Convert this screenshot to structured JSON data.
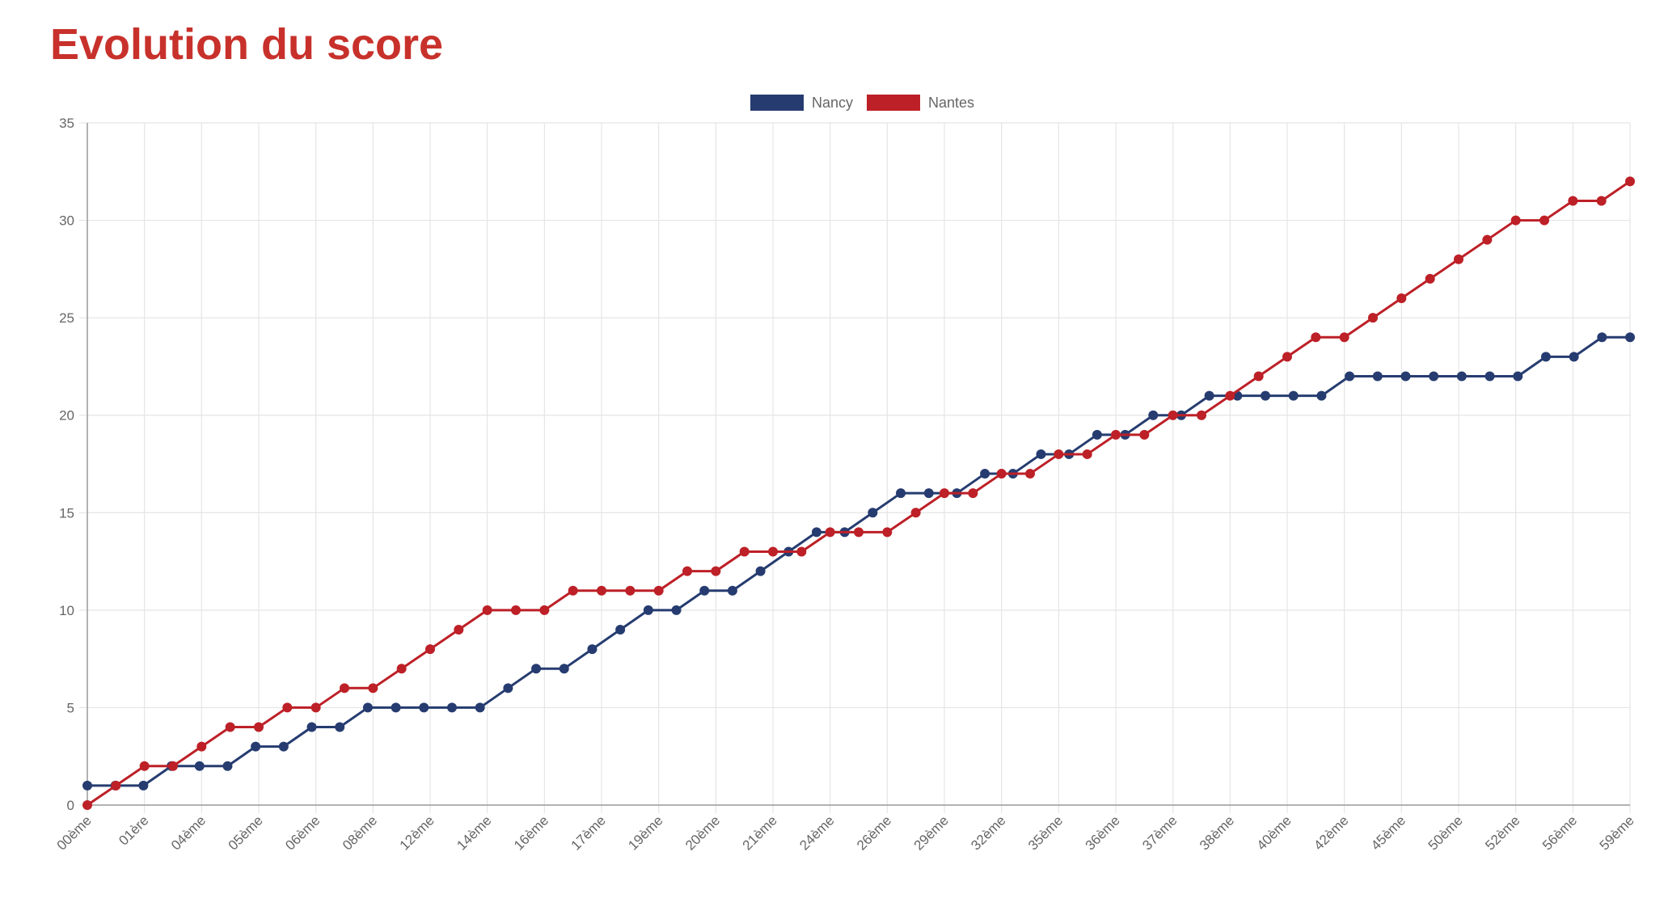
{
  "page": {
    "title": "Evolution du score"
  },
  "colors": {
    "title": "#c8312b",
    "grid": "#e5e5e5",
    "axis": "#9a9a9a",
    "text": "#666666"
  },
  "chart_data": {
    "type": "line",
    "title": "",
    "xlabel": "",
    "ylabel": "",
    "ylim": [
      0,
      35
    ],
    "yticks": [
      0,
      5,
      10,
      15,
      20,
      25,
      30,
      35
    ],
    "grid": true,
    "legend_position": "top-center",
    "x_labels": [
      "00ème",
      "01ère",
      "04ème",
      "05ème",
      "06ème",
      "08ème",
      "12ème",
      "14ème",
      "16ème",
      "17ème",
      "19ème",
      "20ème",
      "21ème",
      "24ème",
      "26ème",
      "29ème",
      "32ème",
      "35ème",
      "36ème",
      "37ème",
      "38ème",
      "40ème",
      "42ème",
      "45ème",
      "50ème",
      "52ème",
      "56ème",
      "59ème"
    ],
    "series": [
      {
        "name": "Nancy",
        "color": "#263c70",
        "values": [
          1,
          1,
          1,
          2,
          2,
          2,
          3,
          3,
          4,
          4,
          5,
          5,
          5,
          5,
          5,
          6,
          7,
          7,
          8,
          9,
          10,
          10,
          11,
          11,
          12,
          13,
          14,
          14,
          15,
          16,
          16,
          16,
          17,
          17,
          18,
          18,
          19,
          19,
          20,
          20,
          21,
          21,
          21,
          21,
          21,
          22,
          22,
          22,
          22,
          22,
          22,
          22,
          23,
          23,
          24,
          24
        ]
      },
      {
        "name": "Nantes",
        "color": "#bd2027",
        "values": [
          0,
          1,
          2,
          2,
          3,
          4,
          4,
          5,
          5,
          6,
          6,
          7,
          8,
          9,
          10,
          10,
          10,
          11,
          11,
          11,
          11,
          12,
          12,
          13,
          13,
          13,
          14,
          14,
          14,
          15,
          16,
          16,
          17,
          17,
          18,
          18,
          19,
          19,
          20,
          20,
          21,
          22,
          23,
          24,
          24,
          25,
          26,
          27,
          28,
          29,
          30,
          30,
          31,
          31,
          32
        ]
      }
    ]
  }
}
